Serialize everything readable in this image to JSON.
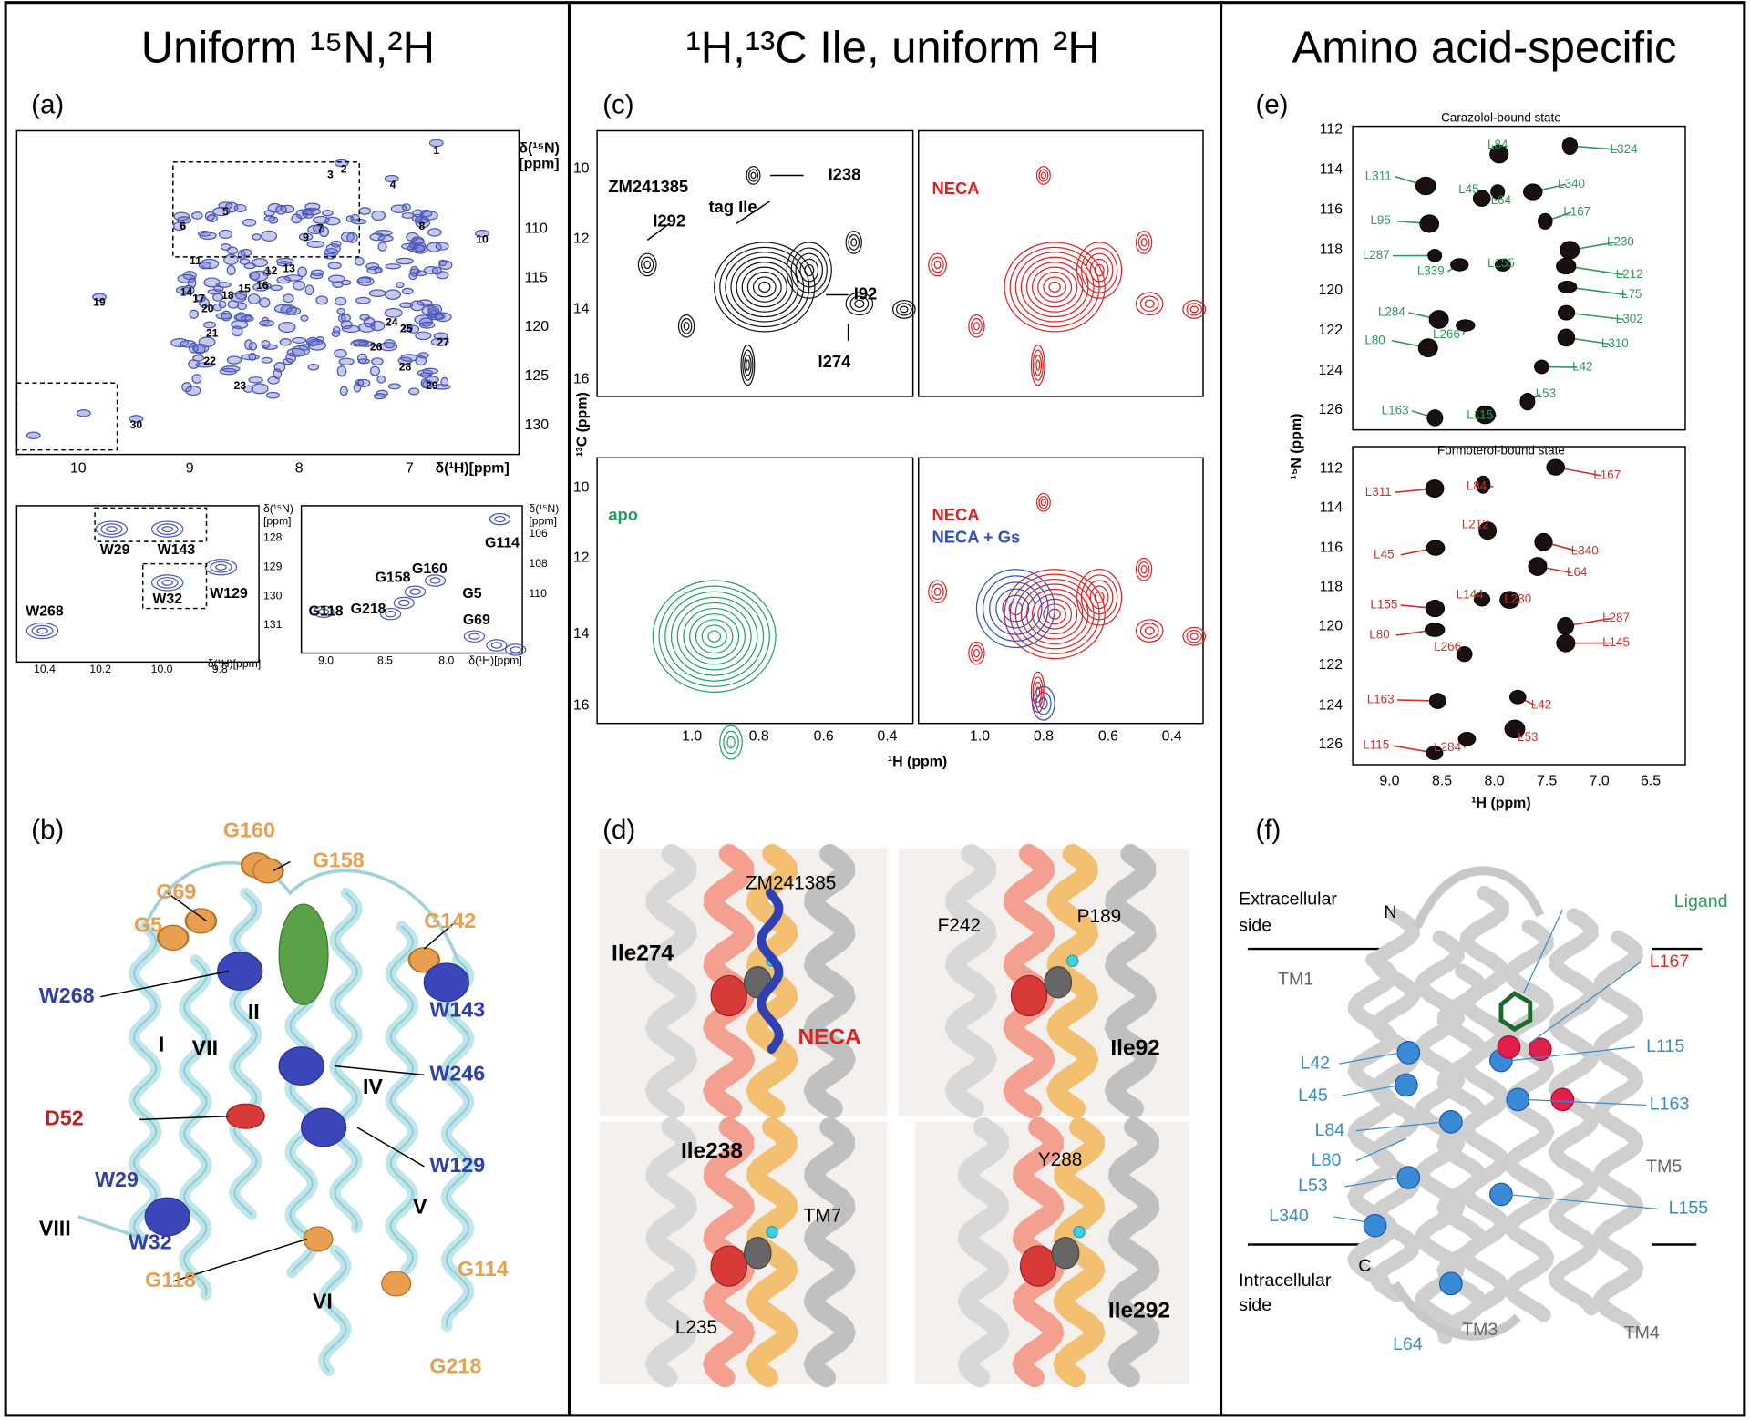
{
  "columns": [
    {
      "title": "Uniform ¹⁵N,²H"
    },
    {
      "title": "¹H,¹³C Ile, uniform ²H"
    },
    {
      "title": "Amino acid-specific"
    }
  ],
  "panel_a": {
    "label": "(a)",
    "y_axis": "δ(¹⁵N)",
    "y_unit": "[ppm]",
    "x_axis": "δ(¹H)[ppm]",
    "xticks": [
      "10",
      "9",
      "8",
      "7"
    ],
    "yticks": [
      "110",
      "115",
      "120",
      "125",
      "130"
    ],
    "peaks": [
      "1",
      "2",
      "3",
      "4",
      "5",
      "6",
      "7",
      "8",
      "9",
      "10",
      "11",
      "12",
      "13",
      "14",
      "15",
      "16",
      "17",
      "18",
      "19",
      "20",
      "21",
      "22",
      "23",
      "24",
      "25",
      "26",
      "27",
      "28",
      "29",
      "30"
    ],
    "inset_w": {
      "y_axis": "δ(¹⁵N)",
      "y_unit": "[ppm]",
      "x_axis": "δ(¹H)[ppm]",
      "xticks": [
        "10.4",
        "10.2",
        "10.0",
        "9.8"
      ],
      "yticks": [
        "128",
        "129",
        "130",
        "131"
      ],
      "peaks": [
        "W29",
        "W143",
        "W129",
        "W32",
        "W268"
      ]
    },
    "inset_g": {
      "y_axis": "δ(¹⁵N)",
      "y_unit": "[ppm]",
      "x_axis": "δ(¹H)[ppm]",
      "xticks": [
        "9.0",
        "8.5",
        "8.0"
      ],
      "yticks": [
        "106",
        "108",
        "110"
      ],
      "peaks": [
        "G114",
        "G160",
        "G158",
        "G5",
        "G218",
        "G118",
        "G69"
      ]
    }
  },
  "panel_b": {
    "label": "(b)",
    "labels": [
      "G160",
      "G158",
      "G69",
      "G5",
      "G142",
      "W268",
      "W143",
      "II",
      "I",
      "VII",
      "W246",
      "IV",
      "D52",
      "W129",
      "W29",
      "V",
      "VIII",
      "W32",
      "G114",
      "G118",
      "VI",
      "G218"
    ]
  },
  "panel_c": {
    "label": "(c)",
    "y_axis": "¹³C (ppm)",
    "x_axis": "¹H (ppm)",
    "yticks_top": [
      "10",
      "12",
      "14",
      "16"
    ],
    "yticks_bottom": [
      "10",
      "12",
      "14",
      "16"
    ],
    "xticks_left": [
      "1.0",
      "0.8",
      "0.6",
      "0.4"
    ],
    "xticks_right": [
      "1.0",
      "0.8",
      "0.6",
      "0.4"
    ],
    "labels": [
      "ZM241385",
      "I238",
      "tag Ile",
      "I292",
      "I92",
      "I274",
      "NECA",
      "apo",
      "NECA",
      "NECA + Gs"
    ]
  },
  "panel_d": {
    "label": "(d)",
    "labels": [
      "ZM241385",
      "Ile274",
      "NECA",
      "F242",
      "P189",
      "Ile92",
      "Ile238",
      "TM7",
      "L235",
      "Y288",
      "Ile292"
    ]
  },
  "panel_e": {
    "label": "(e)",
    "y_axis": "¹⁵N (ppm)",
    "x_axis": "¹H (ppm)",
    "yticks_top": [
      "112",
      "114",
      "116",
      "118",
      "120",
      "122",
      "124",
      "126"
    ],
    "yticks_bottom": [
      "112",
      "114",
      "116",
      "118",
      "120",
      "122",
      "124",
      "126"
    ],
    "xticks": [
      "9.0",
      "8.5",
      "8.0",
      "7.5",
      "7.0",
      "6.5"
    ],
    "top": {
      "title": "Carazolol-bound state",
      "labels": [
        "L84",
        "L324",
        "L311",
        "L45",
        "L340",
        "L64",
        "L167",
        "L95",
        "L230",
        "L287",
        "L339",
        "L155",
        "L212",
        "L284",
        "L75",
        "L266",
        "L302",
        "L80",
        "L310",
        "L42",
        "L53",
        "L163",
        "L115"
      ]
    },
    "bottom": {
      "title": "Formoterol-bound state",
      "labels": [
        "L167",
        "L311",
        "L84",
        "L212",
        "L45",
        "L340",
        "L64",
        "L155",
        "L144",
        "L230",
        "L287",
        "L266",
        "L145",
        "L80",
        "L42",
        "L163",
        "L53",
        "L115",
        "L284"
      ]
    }
  },
  "panel_f": {
    "label": "(f)",
    "labels": [
      "Extracellular",
      "side",
      "N",
      "Ligand",
      "L167",
      "TM1",
      "L115",
      "L42",
      "L45",
      "L163",
      "L84",
      "L80",
      "TM5",
      "L53",
      "L155",
      "L340",
      "C",
      "Intracellular",
      "side",
      "TM3",
      "TM4",
      "L64"
    ]
  }
}
